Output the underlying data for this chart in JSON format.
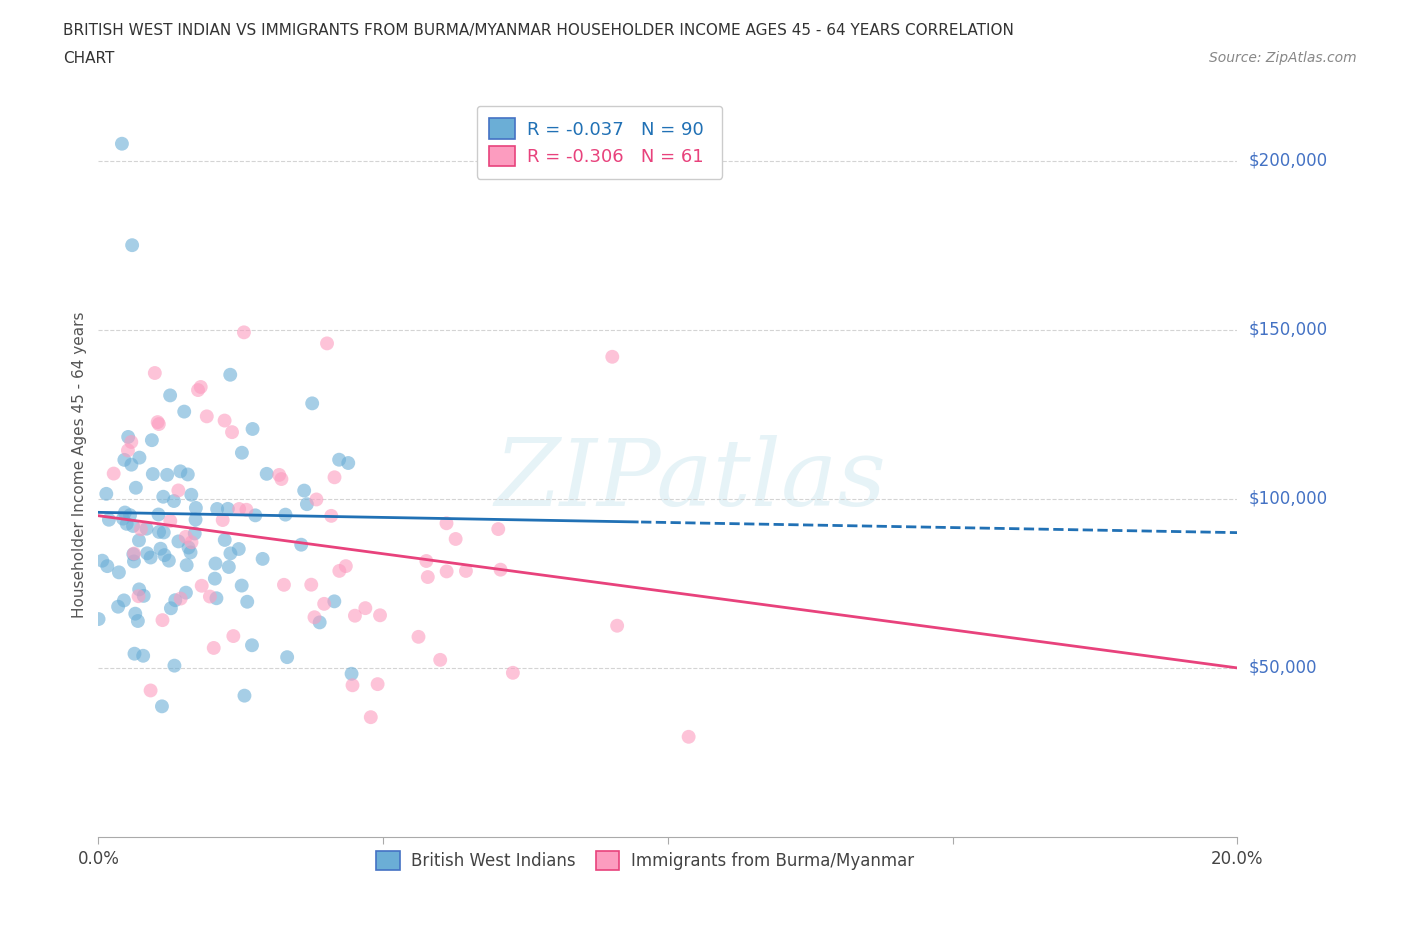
{
  "title_line1": "BRITISH WEST INDIAN VS IMMIGRANTS FROM BURMA/MYANMAR HOUSEHOLDER INCOME AGES 45 - 64 YEARS CORRELATION",
  "title_line2": "CHART",
  "source": "Source: ZipAtlas.com",
  "ylabel": "Householder Income Ages 45 - 64 years",
  "legend_labels": [
    "British West Indians",
    "Immigrants from Burma/Myanmar"
  ],
  "blue_R": -0.037,
  "blue_N": 90,
  "pink_R": -0.306,
  "pink_N": 61,
  "blue_color": "#6baed6",
  "blue_line_color": "#2171b5",
  "pink_color": "#fc9cbf",
  "pink_line_color": "#e8427c",
  "watermark_text": "ZIPatlas",
  "xmin": 0.0,
  "xmax": 0.2,
  "ymin": 0,
  "ymax": 220000,
  "ytick_labels": [
    "$200,000",
    "$150,000",
    "$100,000",
    "$50,000"
  ],
  "ytick_values": [
    200000,
    150000,
    100000,
    50000
  ],
  "background_color": "#ffffff",
  "grid_color": "#d0d0d0"
}
